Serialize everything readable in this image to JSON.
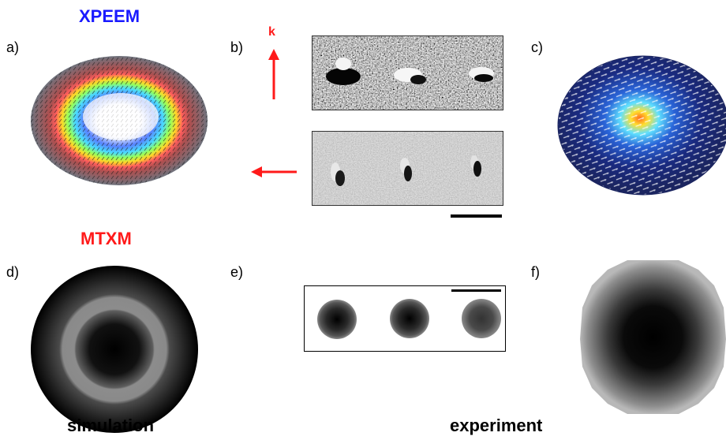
{
  "titles": {
    "xpeem": "XPEEM",
    "mtxm": "MTXM"
  },
  "panel_labels": {
    "a": "a)",
    "b": "b)",
    "c": "c)",
    "d": "d)",
    "e": "e)",
    "f": "f)"
  },
  "k_label": "k",
  "captions": {
    "simulation": "simulation",
    "experiment": "experiment"
  },
  "colors": {
    "xpeem_title": "#1a1aff",
    "mtxm_title": "#ff1a1a",
    "arrows": "#ff1a1a"
  }
}
